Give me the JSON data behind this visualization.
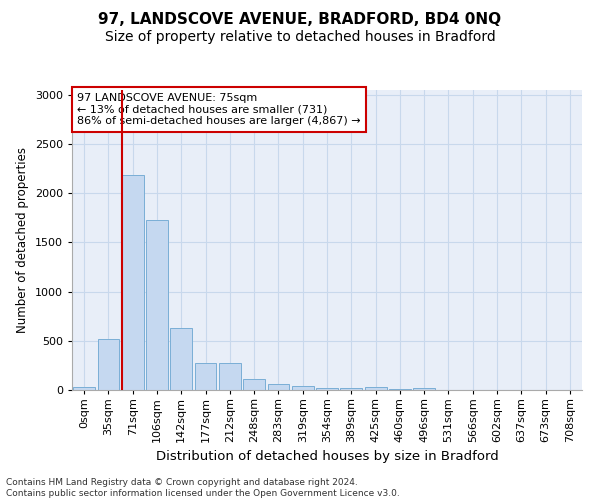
{
  "title1": "97, LANDSCOVE AVENUE, BRADFORD, BD4 0NQ",
  "title2": "Size of property relative to detached houses in Bradford",
  "xlabel": "Distribution of detached houses by size in Bradford",
  "ylabel": "Number of detached properties",
  "footnote": "Contains HM Land Registry data © Crown copyright and database right 2024.\nContains public sector information licensed under the Open Government Licence v3.0.",
  "categories": [
    "0sqm",
    "35sqm",
    "71sqm",
    "106sqm",
    "142sqm",
    "177sqm",
    "212sqm",
    "248sqm",
    "283sqm",
    "319sqm",
    "354sqm",
    "389sqm",
    "425sqm",
    "460sqm",
    "496sqm",
    "531sqm",
    "566sqm",
    "602sqm",
    "637sqm",
    "673sqm",
    "708sqm"
  ],
  "values": [
    30,
    520,
    2185,
    1730,
    635,
    270,
    270,
    115,
    65,
    40,
    25,
    20,
    30,
    10,
    25,
    0,
    0,
    0,
    0,
    0,
    0
  ],
  "bar_color": "#c5d8f0",
  "bar_edge_color": "#7aaed6",
  "annotation_box_text": "97 LANDSCOVE AVENUE: 75sqm\n← 13% of detached houses are smaller (731)\n86% of semi-detached houses are larger (4,867) →",
  "annotation_box_color": "#ffffff",
  "annotation_box_edge_color": "#cc0000",
  "vline_color": "#cc0000",
  "vline_position": 1.575,
  "ylim": [
    0,
    3050
  ],
  "yticks": [
    0,
    500,
    1000,
    1500,
    2000,
    2500,
    3000
  ],
  "grid_color": "#c8d8ec",
  "bg_color": "#e8eef8",
  "title1_fontsize": 11,
  "title2_fontsize": 10,
  "xlabel_fontsize": 9.5,
  "ylabel_fontsize": 8.5,
  "tick_fontsize": 8,
  "annot_fontsize": 8,
  "footnote_fontsize": 6.5
}
